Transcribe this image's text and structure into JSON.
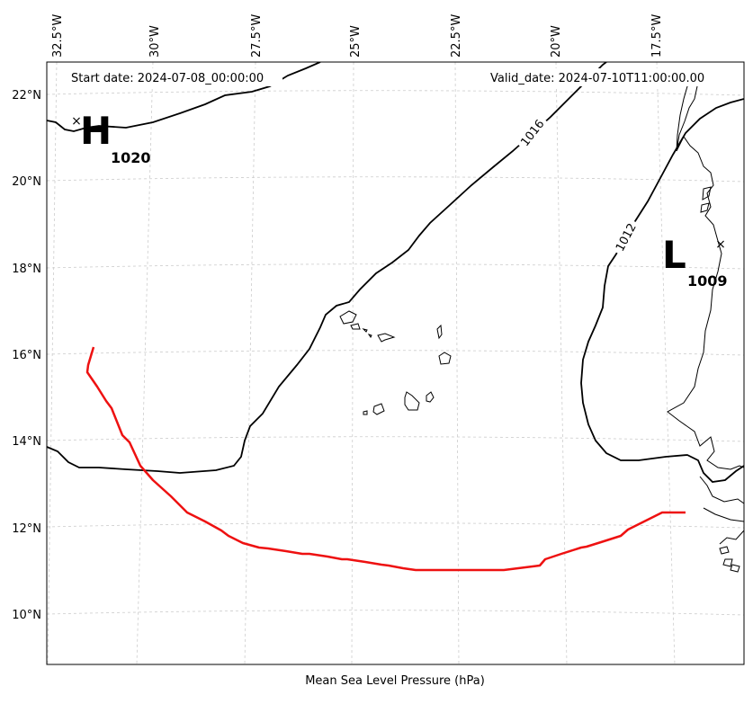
{
  "header": {
    "start_date": "Start date: 2024-07-08_00:00:00",
    "valid_date": "Valid_date: 2024-07-10T11:00:00.00"
  },
  "caption": "Mean Sea Level Pressure (hPa)",
  "longitude_labels": [
    "32.5°W",
    "30°W",
    "27.5°W",
    "25°W",
    "22.5°W",
    "20°W",
    "17.5°W"
  ],
  "latitude_labels": [
    "22°N",
    "20°N",
    "18°N",
    "16°N",
    "14°N",
    "12°N",
    "10°N"
  ],
  "pressure_systems": [
    {
      "type": "H",
      "value": "1020"
    },
    {
      "type": "L",
      "value": "1009"
    }
  ],
  "isobar_labels": [
    "1016",
    "1012"
  ],
  "colors": {
    "track": "#ee1111",
    "isobar": "#000000",
    "coastline": "#000000",
    "grid": "#cccccc"
  }
}
